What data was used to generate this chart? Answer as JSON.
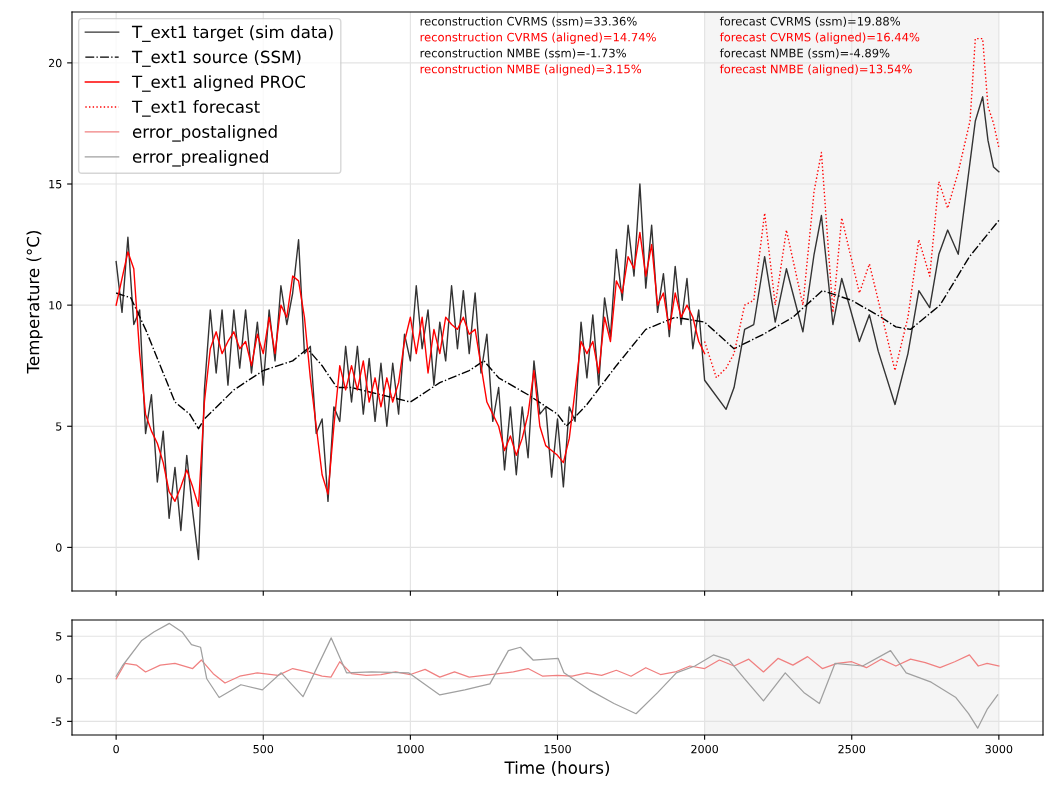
{
  "chart_data": [
    {
      "type": "line",
      "ylabel": "Temperature (°C)",
      "xlim": [
        -150,
        3150
      ],
      "xticks": [
        0,
        500,
        1000,
        1500,
        2000,
        2500,
        3000
      ],
      "ylim": [
        -1.8,
        22.1
      ],
      "yticks": [
        0,
        5,
        10,
        15,
        20
      ],
      "tick_labels": "y",
      "grid": true,
      "legend": "top left",
      "bands": [
        {
          "axis": "x",
          "from": 2000,
          "to": 3000,
          "color": "#f5f5f5"
        }
      ],
      "annotations": [
        "reconstruction CVRMS (ssm)=33.36%",
        "reconstruction CVRMS (aligned)=14.74%",
        "reconstruction NMBE (ssm)=-1.73%",
        "reconstruction NMBE (aligned)=3.15%",
        "forecast CVRMS (ssm)=19.88%",
        "forecast CVRMS (aligned)=16.44%",
        "forecast NMBE (ssm)=-4.89%",
        "forecast NMBE (aligned)=13.54%"
      ],
      "series": [
        {
          "name": "T_ext1 target (sim data)",
          "color": "#333333",
          "line_style": "solid",
          "x": [
            0,
            20,
            40,
            60,
            80,
            100,
            120,
            140,
            160,
            180,
            200,
            220,
            240,
            260,
            280,
            300,
            320,
            340,
            360,
            380,
            400,
            420,
            440,
            460,
            480,
            500,
            520,
            540,
            560,
            580,
            600,
            620,
            640,
            660,
            680,
            700,
            720,
            740,
            760,
            780,
            800,
            820,
            840,
            860,
            880,
            900,
            920,
            940,
            960,
            980,
            1000,
            1020,
            1040,
            1060,
            1080,
            1100,
            1120,
            1140,
            1160,
            1180,
            1200,
            1220,
            1240,
            1260,
            1280,
            1300,
            1320,
            1340,
            1360,
            1380,
            1400,
            1420,
            1440,
            1460,
            1480,
            1500,
            1520,
            1540,
            1560,
            1580,
            1600,
            1620,
            1640,
            1660,
            1680,
            1700,
            1720,
            1740,
            1760,
            1780,
            1800,
            1820,
            1840,
            1860,
            1880,
            1900,
            1920,
            1940,
            1960,
            1980,
            2000,
            2073,
            2100,
            2136,
            2167,
            2204,
            2240,
            2278,
            2334,
            2372,
            2397,
            2436,
            2466,
            2526,
            2560,
            2590,
            2647,
            2691,
            2728,
            2765,
            2796,
            2826,
            2862,
            2902,
            2920,
            2945,
            2963,
            2982,
            3000
          ],
          "values": [
            11.8,
            9.7,
            12.8,
            9.2,
            9.8,
            4.7,
            6.3,
            2.7,
            4.8,
            1.2,
            3.3,
            0.7,
            3.8,
            1.5,
            -0.5,
            6.5,
            9.8,
            7.2,
            9.8,
            6.7,
            9.8,
            7.4,
            9.8,
            7.2,
            9.3,
            6.7,
            9.8,
            7.7,
            10.8,
            9.2,
            10.5,
            12.7,
            8.0,
            8.3,
            4.7,
            5.3,
            1.9,
            5.8,
            5.2,
            8.3,
            6.0,
            8.3,
            5.5,
            7.8,
            5.2,
            7.6,
            5.0,
            7.6,
            5.5,
            8.8,
            7.7,
            10.8,
            8.2,
            9.8,
            6.7,
            9.3,
            7.7,
            10.8,
            8.2,
            10.6,
            8.0,
            10.5,
            7.2,
            8.8,
            5.2,
            6.6,
            3.2,
            5.8,
            3.0,
            5.8,
            3.7,
            7.7,
            5.5,
            5.8,
            2.9,
            5.3,
            2.5,
            5.8,
            5.2,
            9.3,
            7.0,
            9.6,
            6.7,
            10.3,
            8.7,
            12.3,
            10.2,
            13.3,
            11.2,
            15.0,
            10.7,
            13.3,
            9.7,
            11.3,
            8.7,
            11.6,
            9.2,
            11.1,
            8.2,
            9.8,
            6.9,
            5.7,
            6.6,
            9.0,
            9.2,
            12.0,
            9.3,
            11.5,
            8.9,
            12.1,
            13.7,
            9.2,
            11.1,
            8.5,
            9.6,
            8.1,
            5.9,
            8.0,
            10.6,
            9.9,
            12.1,
            13.1,
            12.1,
            15.9,
            17.6,
            18.6,
            16.8,
            15.7,
            15.5
          ]
        },
        {
          "name": "T_ext1 source (SSM)",
          "color": "#000000",
          "line_style": "dashdot",
          "x": [
            0,
            50,
            100,
            150,
            200,
            250,
            280,
            300,
            400,
            500,
            600,
            650,
            700,
            750,
            800,
            900,
            1000,
            1100,
            1200,
            1250,
            1300,
            1400,
            1500,
            1530,
            1600,
            1700,
            1800,
            1900,
            2000,
            2100,
            2200,
            2300,
            2400,
            2500,
            2600,
            2650,
            2700,
            2800,
            2900,
            3000
          ],
          "values": [
            10.5,
            10.3,
            9.0,
            7.5,
            6.0,
            5.5,
            4.9,
            5.3,
            6.5,
            7.3,
            7.7,
            8.2,
            7.5,
            6.6,
            6.6,
            6.3,
            6.0,
            6.8,
            7.3,
            7.7,
            7.0,
            6.3,
            5.5,
            5.0,
            5.9,
            7.5,
            9.0,
            9.5,
            9.3,
            8.2,
            8.8,
            9.5,
            10.6,
            10.2,
            9.5,
            9.1,
            9.0,
            10.0,
            12.0,
            13.5
          ]
        },
        {
          "name": "T_ext1 aligned PROC",
          "color": "#ff0000",
          "line_style": "solid",
          "x": [
            0,
            40,
            60,
            80,
            100,
            120,
            140,
            160,
            180,
            200,
            220,
            240,
            260,
            280,
            300,
            320,
            340,
            360,
            380,
            400,
            420,
            440,
            460,
            480,
            500,
            520,
            540,
            560,
            580,
            600,
            620,
            640,
            660,
            680,
            700,
            720,
            740,
            760,
            780,
            800,
            820,
            840,
            860,
            880,
            900,
            920,
            940,
            960,
            980,
            1000,
            1020,
            1040,
            1060,
            1080,
            1100,
            1120,
            1140,
            1160,
            1180,
            1200,
            1220,
            1240,
            1260,
            1280,
            1300,
            1320,
            1340,
            1360,
            1380,
            1400,
            1420,
            1440,
            1460,
            1480,
            1500,
            1520,
            1540,
            1560,
            1580,
            1600,
            1620,
            1640,
            1660,
            1680,
            1700,
            1720,
            1740,
            1760,
            1780,
            1800,
            1820,
            1840,
            1860,
            1880,
            1900,
            1920,
            1940,
            1960,
            1980,
            2000
          ],
          "values": [
            10.0,
            12.2,
            11.5,
            8.0,
            5.5,
            4.8,
            4.3,
            3.5,
            2.3,
            1.9,
            2.5,
            3.2,
            2.5,
            1.7,
            6.0,
            8.2,
            8.9,
            8.0,
            8.5,
            8.9,
            8.2,
            8.5,
            7.5,
            8.8,
            8.0,
            9.5,
            8.0,
            10.0,
            9.5,
            11.2,
            11.0,
            9.5,
            7.0,
            5.0,
            3.0,
            2.2,
            5.0,
            7.5,
            6.5,
            7.5,
            6.5,
            7.7,
            6.0,
            7.0,
            5.8,
            7.0,
            6.0,
            6.8,
            8.5,
            9.5,
            8.0,
            9.5,
            7.2,
            9.0,
            8.0,
            9.5,
            9.2,
            9.0,
            9.5,
            8.8,
            9.0,
            7.5,
            6.0,
            5.5,
            5.0,
            4.0,
            4.6,
            3.8,
            4.5,
            5.5,
            7.3,
            5.0,
            4.2,
            4.0,
            3.8,
            3.5,
            4.5,
            6.5,
            8.5,
            8.0,
            8.5,
            7.2,
            9.5,
            8.5,
            11.0,
            10.5,
            12.0,
            11.5,
            13.0,
            11.2,
            12.5,
            10.0,
            10.5,
            9.0,
            10.5,
            9.5,
            10.0,
            9.5,
            8.5,
            8.0
          ]
        },
        {
          "name": "T_ext1 forecast",
          "color": "#ff0000",
          "line_style": "dotted",
          "x": [
            2000,
            2040,
            2073,
            2100,
            2136,
            2167,
            2204,
            2240,
            2278,
            2334,
            2372,
            2397,
            2436,
            2466,
            2526,
            2560,
            2590,
            2647,
            2691,
            2728,
            2765,
            2796,
            2826,
            2862,
            2902,
            2920,
            2945,
            2963,
            2982,
            3000
          ],
          "values": [
            8.5,
            7.0,
            7.4,
            8.0,
            10.0,
            10.2,
            13.8,
            10.0,
            13.1,
            10.0,
            14.7,
            16.3,
            9.7,
            13.6,
            10.5,
            11.7,
            10.2,
            7.3,
            9.5,
            12.7,
            11.2,
            15.1,
            14.0,
            15.5,
            17.6,
            21.0,
            21.0,
            18.2,
            17.5,
            16.5
          ]
        }
      ]
    },
    {
      "type": "line",
      "xlabel": "Time (hours)",
      "xlim": [
        -150,
        3150
      ],
      "xticks": [
        0,
        500,
        1000,
        1500,
        2000,
        2500,
        3000
      ],
      "ylim": [
        -6.6,
        6.9
      ],
      "yticks": [
        -5,
        0,
        5
      ],
      "grid": true,
      "legend": "top left",
      "bands": [
        {
          "axis": "x",
          "from": 2000,
          "to": 3000,
          "color": "#f5f5f5"
        }
      ],
      "series": [
        {
          "name": "error_postaligned",
          "color": "#f08080",
          "line_style": "solid",
          "x": [
            0,
            30,
            70,
            100,
            150,
            200,
            260,
            290,
            330,
            370,
            420,
            480,
            550,
            600,
            650,
            700,
            730,
            760,
            800,
            850,
            900,
            950,
            1000,
            1050,
            1100,
            1150,
            1200,
            1250,
            1300,
            1350,
            1400,
            1450,
            1500,
            1550,
            1600,
            1650,
            1700,
            1750,
            1800,
            1850,
            1900,
            1950,
            2000,
            2050,
            2100,
            2150,
            2200,
            2250,
            2300,
            2350,
            2400,
            2450,
            2500,
            2550,
            2600,
            2650,
            2700,
            2750,
            2800,
            2850,
            2900,
            2930,
            2960,
            3000
          ],
          "values": [
            0,
            1.8,
            1.6,
            0.8,
            1.6,
            1.8,
            1.2,
            2.2,
            0.6,
            -0.5,
            0.3,
            0.7,
            0.4,
            1.2,
            0.8,
            0.3,
            0.2,
            2.0,
            0.6,
            0.4,
            0.5,
            0.8,
            0.5,
            1.1,
            0.2,
            0.8,
            0.2,
            0.4,
            0.6,
            0.8,
            1.2,
            0.3,
            0.4,
            0.3,
            0.7,
            0.4,
            1.0,
            0.3,
            1.3,
            0.5,
            0.8,
            1.5,
            1.2,
            2.2,
            1.5,
            2.3,
            0.8,
            2.4,
            1.6,
            2.6,
            1.2,
            1.8,
            2.0,
            1.3,
            2.3,
            1.5,
            2.3,
            1.9,
            1.3,
            2.0,
            2.8,
            1.5,
            1.8,
            1.5
          ]
        },
        {
          "name": "error_prealigned",
          "color": "#a0a0a0",
          "line_style": "solid",
          "x": [
            0,
            21,
            87,
            128,
            181,
            224,
            256,
            287,
            308,
            350,
            424,
            497,
            561,
            635,
            731,
            783,
            868,
            994,
            1100,
            1185,
            1270,
            1333,
            1374,
            1417,
            1502,
            1522,
            1608,
            1692,
            1767,
            1841,
            1904,
            1967,
            2030,
            2083,
            2136,
            2200,
            2274,
            2337,
            2390,
            2443,
            2537,
            2632,
            2685,
            2770,
            2854,
            2897,
            2928,
            2960,
            2996
          ],
          "values": [
            0.3,
            1.5,
            4.5,
            5.5,
            6.5,
            5.5,
            4.0,
            3.7,
            0,
            -2.2,
            -0.7,
            -1.3,
            0.7,
            -2.1,
            4.8,
            0.7,
            0.8,
            0.7,
            -1.9,
            -1.3,
            -0.6,
            3.3,
            3.7,
            2.2,
            2.4,
            0.7,
            -1.3,
            -2.9,
            -4.1,
            -1.6,
            0.7,
            1.5,
            2.8,
            2.2,
            0,
            -2.6,
            0.7,
            -1.6,
            -2.9,
            1.8,
            1.5,
            3.3,
            0.7,
            -0.4,
            -2.2,
            -4.1,
            -5.8,
            -3.6,
            -1.9
          ]
        }
      ]
    }
  ]
}
